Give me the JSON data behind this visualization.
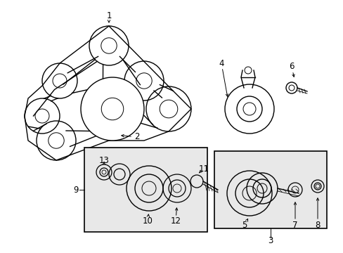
{
  "bg_color": "#ffffff",
  "line_color": "#000000",
  "box_fill": "#e8e8e8",
  "fig_w": 4.89,
  "fig_h": 3.6,
  "dpi": 100
}
